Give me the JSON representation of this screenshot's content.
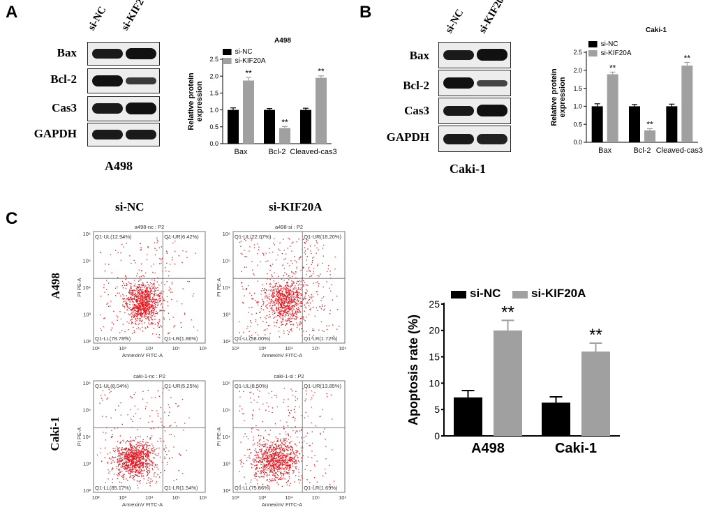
{
  "panels": {
    "A": {
      "letter": "A",
      "cell_line": "A498",
      "columns": [
        "si-NC",
        "si-KIF20A"
      ],
      "rows": [
        "Bax",
        "Bcl-2",
        "Cas3",
        "GAPDH"
      ]
    },
    "B": {
      "letter": "B",
      "cell_line": "Caki-1",
      "columns": [
        "si-NC",
        "si-KIF20A"
      ],
      "rows": [
        "Bax",
        "Bcl-2",
        "Cas3",
        "GAPDH"
      ]
    },
    "C": {
      "letter": "C",
      "conditions": [
        "si-NC",
        "si-KIF20A"
      ],
      "cell_lines": [
        "A498",
        "Caki-1"
      ],
      "flow": {
        "x_label": "AnnexinV FITC-A",
        "y_label": "PI PE-A",
        "ticks": [
          "10²",
          "10³",
          "10⁴",
          "10⁵",
          "10⁶"
        ],
        "plots": [
          {
            "title": "a498-nc : P2",
            "ul": "Q1-UL(12.94%)",
            "ur": "Q1-UR(6.42%)",
            "ll": "Q1-LL(78.78%)",
            "lr": "Q1-LR(1.86%)"
          },
          {
            "title": "a498-si : P2",
            "ul": "Q1-UL(22.07%)",
            "ur": "Q1-UR(18.20%)",
            "ll": "Q1-LL(58.00%)",
            "lr": "Q1-LR(1.72%)"
          },
          {
            "title": "caki-1-nc : P2",
            "ul": "Q1-UL(8.04%)",
            "ur": "Q1-UR(5.25%)",
            "ll": "Q1-LL(85.17%)",
            "lr": "Q1-LR(1.54%)"
          },
          {
            "title": "caki-1-si : P2",
            "ul": "Q1-UL(8.50%)",
            "ur": "Q1-UR(13.85%)",
            "ll": "Q1-LL(75.86%)",
            "lr": "Q1-LR(1.69%)"
          }
        ]
      }
    }
  },
  "colors": {
    "si_nc": "#000000",
    "si_kif20a": "#a0a0a0",
    "dots": "#e8141c"
  },
  "chart_data": [
    {
      "id": "a498-protein",
      "type": "bar",
      "title": "A498",
      "categories": [
        "Bax",
        "Bcl-2",
        "Cleaved-cas3"
      ],
      "series": [
        {
          "name": "si-NC",
          "values": [
            1.0,
            1.0,
            1.0
          ],
          "errors": [
            0.06,
            0.04,
            0.05
          ]
        },
        {
          "name": "si-KIF20A",
          "values": [
            1.87,
            0.46,
            1.95
          ],
          "errors": [
            0.09,
            0.05,
            0.06
          ]
        }
      ],
      "annotations": [
        "**",
        "**",
        "**"
      ],
      "ylabel": "Relative protein expression",
      "yticks": [
        "0.0",
        "0.5",
        "1.0",
        "1.5",
        "2.0",
        "2.5"
      ],
      "ylim": [
        0,
        2.5
      ]
    },
    {
      "id": "caki1-protein",
      "type": "bar",
      "title": "Caki-1",
      "categories": [
        "Bax",
        "Bcl-2",
        "Cleaved-cas3"
      ],
      "series": [
        {
          "name": "si-NC",
          "values": [
            1.0,
            1.0,
            1.0
          ],
          "errors": [
            0.07,
            0.05,
            0.06
          ]
        },
        {
          "name": "si-KIF20A",
          "values": [
            1.89,
            0.33,
            2.13
          ],
          "errors": [
            0.06,
            0.05,
            0.09
          ]
        }
      ],
      "annotations": [
        "**",
        "**",
        "**"
      ],
      "ylabel": "Relative protein expression",
      "yticks": [
        "0.0",
        "0.5",
        "1.0",
        "1.5",
        "2.0",
        "2.5"
      ],
      "ylim": [
        0,
        2.5
      ]
    },
    {
      "id": "apoptosis",
      "type": "bar",
      "title": "",
      "categories": [
        "A498",
        "Caki-1"
      ],
      "series": [
        {
          "name": "si-NC",
          "values": [
            7.3,
            6.3
          ],
          "errors": [
            1.3,
            1.1
          ]
        },
        {
          "name": "si-KIF20A",
          "values": [
            20.0,
            16.0
          ],
          "errors": [
            1.9,
            1.6
          ]
        }
      ],
      "annotations": [
        "**",
        "**"
      ],
      "ylabel": "Apoptosis rate (%)",
      "yticks": [
        "0",
        "5",
        "10",
        "15",
        "20",
        "25"
      ],
      "ylim": [
        0,
        25
      ]
    }
  ]
}
